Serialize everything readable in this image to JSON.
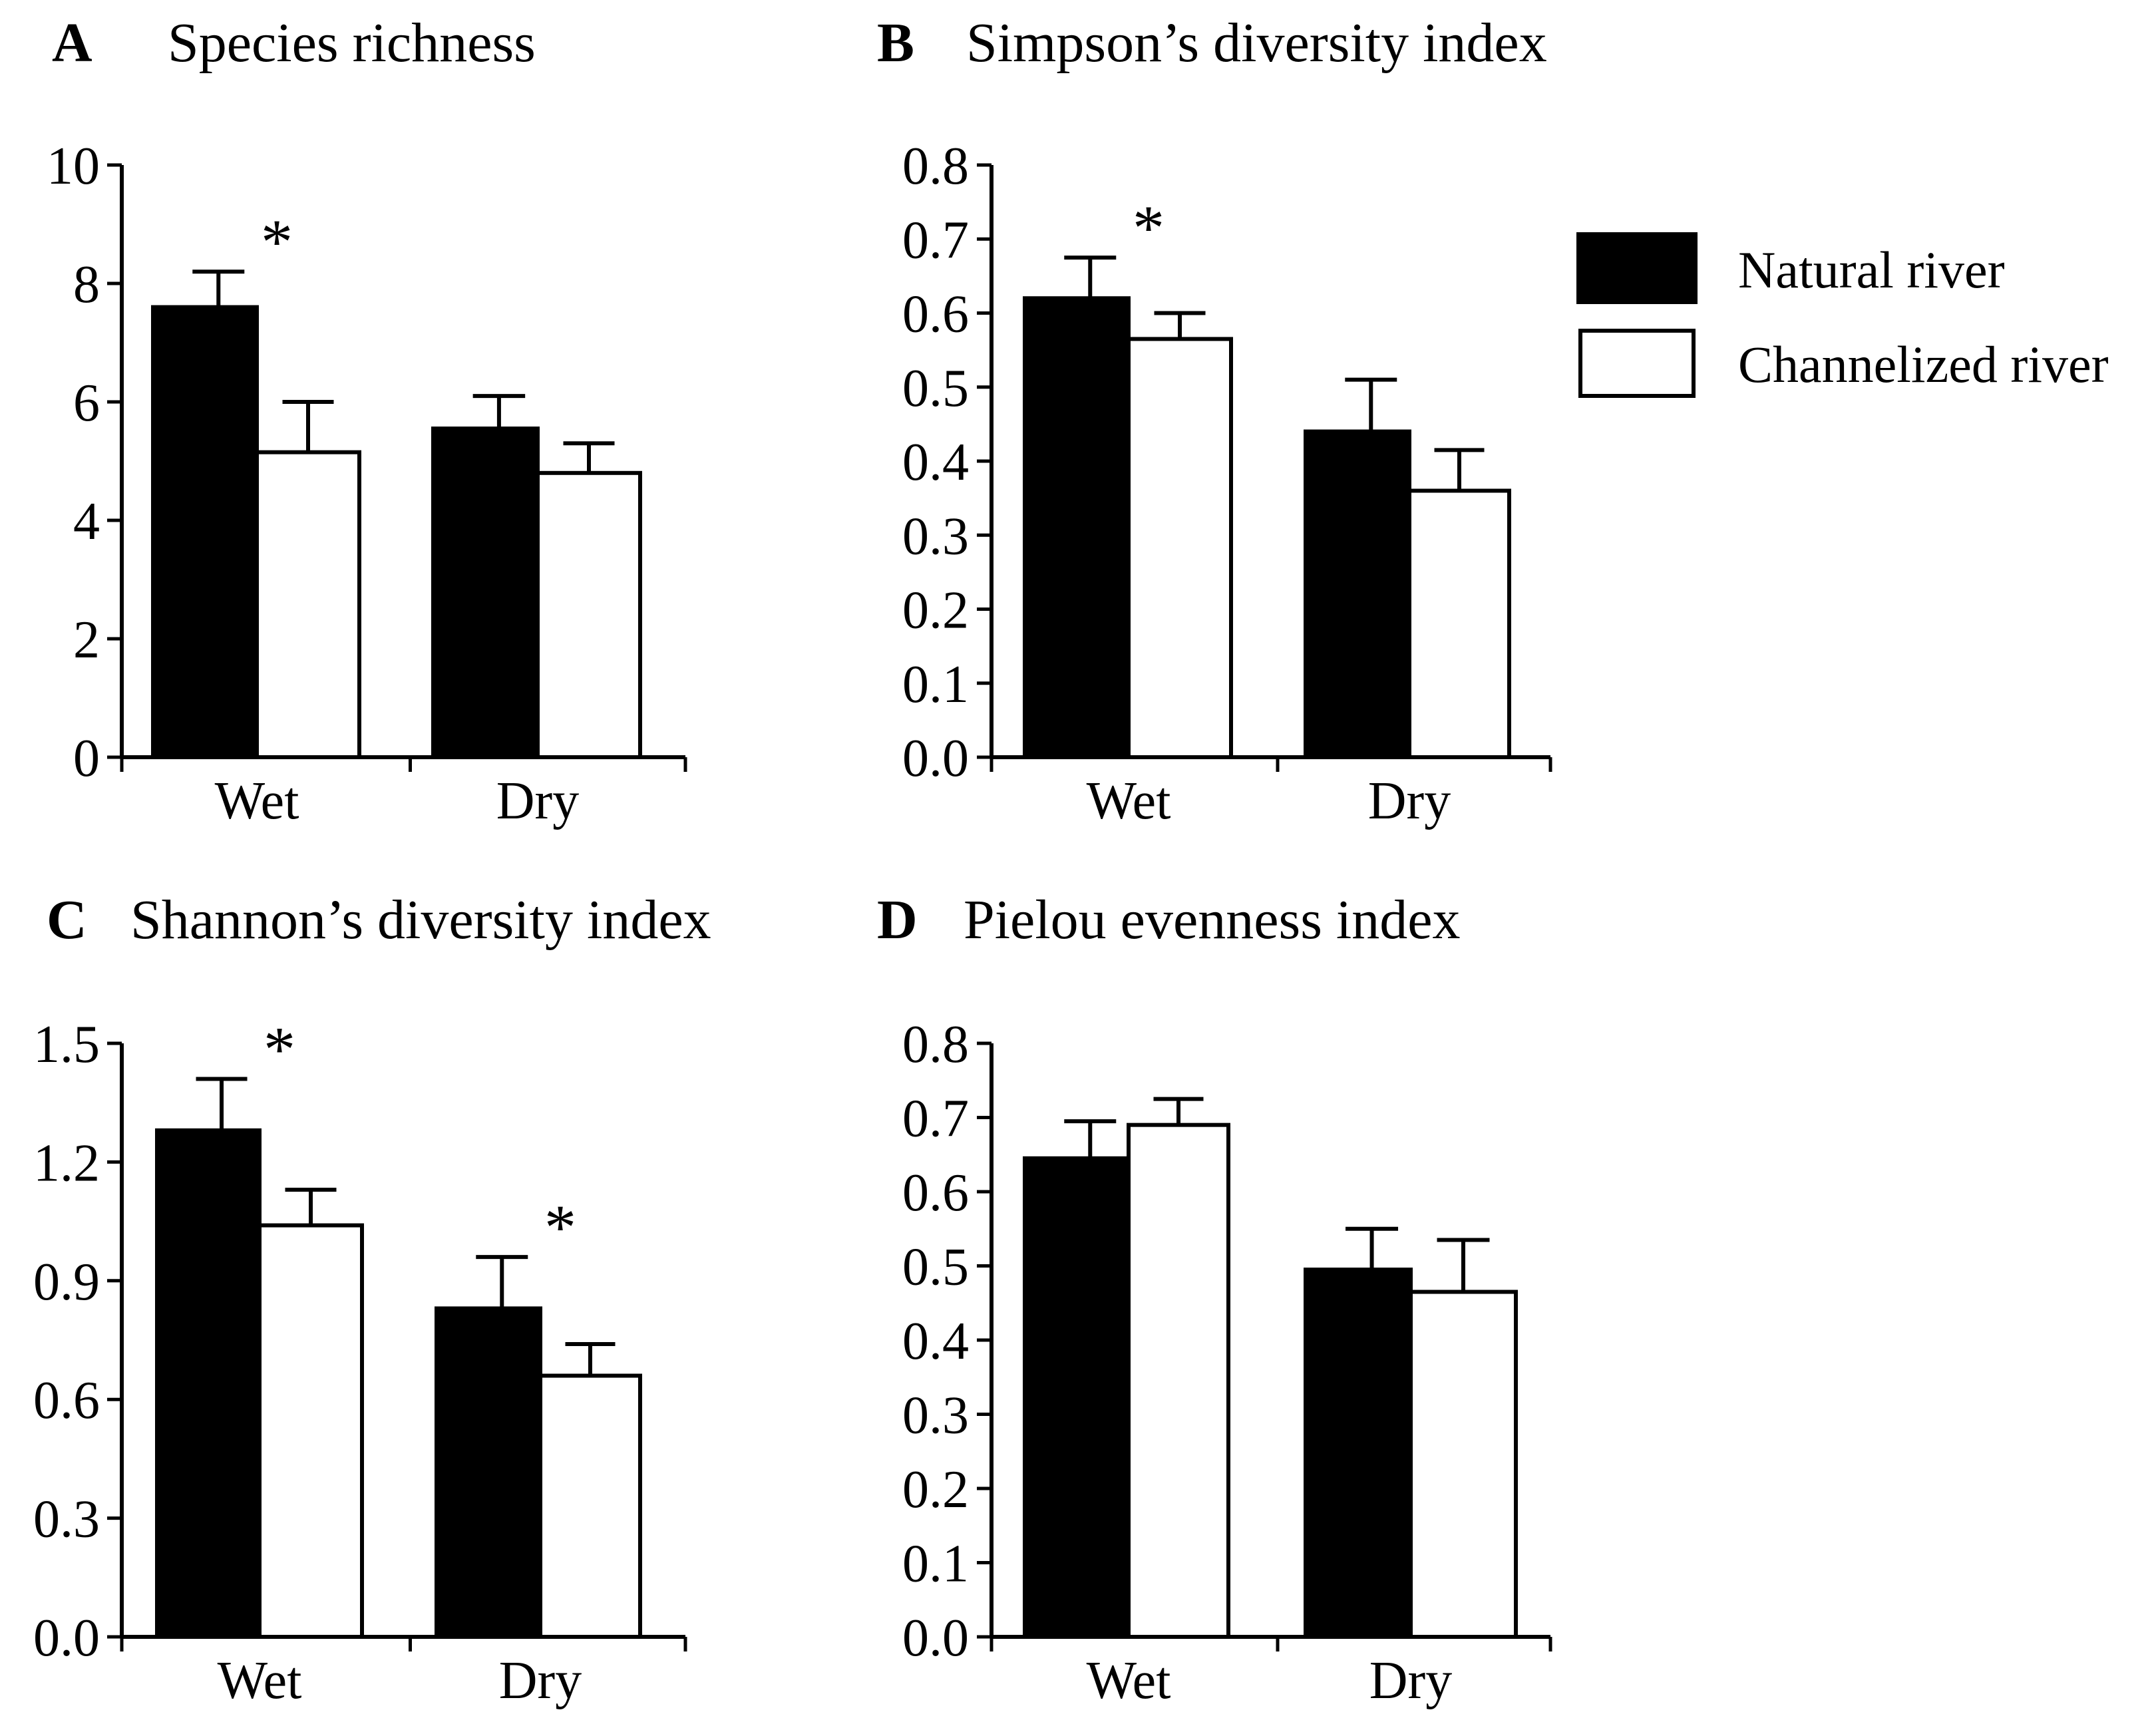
{
  "legend": [
    {
      "label": "Natural river",
      "color": "#000000"
    },
    {
      "label": "Channelized river",
      "color": "#ffffff"
    }
  ],
  "chart_data": [
    {
      "type": "bar",
      "letter": "A",
      "title": "Species richness",
      "categories": [
        "Wet",
        "Dry"
      ],
      "series": [
        {
          "name": "Natural river",
          "values": [
            7.6,
            5.55
          ],
          "errors": [
            0.6,
            0.55
          ]
        },
        {
          "name": "Channelized river",
          "values": [
            5.15,
            4.8
          ],
          "errors": [
            0.85,
            0.5
          ]
        }
      ],
      "significance": [
        "*",
        ""
      ],
      "ylim": [
        0,
        10
      ],
      "yticks": [
        0,
        2,
        4,
        6,
        8,
        10
      ],
      "ytick_labels": [
        "0",
        "2",
        "4",
        "6",
        "8",
        "10"
      ]
    },
    {
      "type": "bar",
      "letter": "B",
      "title": "Simpson’s diversity index",
      "categories": [
        "Wet",
        "Dry"
      ],
      "series": [
        {
          "name": "Natural river",
          "values": [
            0.62,
            0.44
          ],
          "errors": [
            0.055,
            0.07
          ]
        },
        {
          "name": "Channelized river",
          "values": [
            0.565,
            0.36
          ],
          "errors": [
            0.035,
            0.055
          ]
        }
      ],
      "significance": [
        "*",
        ""
      ],
      "ylim": [
        0,
        0.8
      ],
      "yticks": [
        0,
        0.1,
        0.2,
        0.3,
        0.4,
        0.5,
        0.6,
        0.7,
        0.8
      ],
      "ytick_labels": [
        "0.0",
        "0.1",
        "0.2",
        "0.3",
        "0.4",
        "0.5",
        "0.6",
        "0.7",
        "0.8"
      ]
    },
    {
      "type": "bar",
      "letter": "C",
      "title": "Shannon’s diversity index",
      "categories": [
        "Wet",
        "Dry"
      ],
      "series": [
        {
          "name": "Natural river",
          "values": [
            1.28,
            0.83
          ],
          "errors": [
            0.13,
            0.13
          ]
        },
        {
          "name": "Channelized river",
          "values": [
            1.04,
            0.66
          ],
          "errors": [
            0.09,
            0.08
          ]
        }
      ],
      "significance": [
        "*",
        "*"
      ],
      "ylim": [
        0,
        1.5
      ],
      "yticks": [
        0,
        0.3,
        0.6,
        0.9,
        1.2,
        1.5
      ],
      "ytick_labels": [
        "0.0",
        "0.3",
        "0.6",
        "0.9",
        "1.2",
        "1.5"
      ]
    },
    {
      "type": "bar",
      "letter": "D",
      "title": "Pielou evenness index",
      "categories": [
        "Wet",
        "Dry"
      ],
      "series": [
        {
          "name": "Natural river",
          "values": [
            0.645,
            0.495
          ],
          "errors": [
            0.05,
            0.055
          ]
        },
        {
          "name": "Channelized river",
          "values": [
            0.69,
            0.465
          ],
          "errors": [
            0.035,
            0.07
          ]
        }
      ],
      "significance": [
        "",
        ""
      ],
      "ylim": [
        0,
        0.8
      ],
      "yticks": [
        0,
        0.1,
        0.2,
        0.3,
        0.4,
        0.5,
        0.6,
        0.7,
        0.8
      ],
      "ytick_labels": [
        "0.0",
        "0.1",
        "0.2",
        "0.3",
        "0.4",
        "0.5",
        "0.6",
        "0.7",
        "0.8"
      ]
    }
  ]
}
